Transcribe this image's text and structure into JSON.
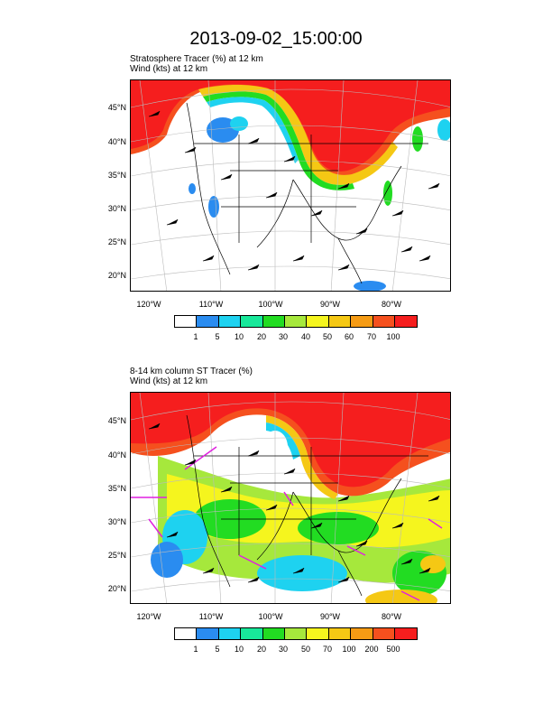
{
  "title": "2013-09-02_15:00:00",
  "colors": {
    "white": "#ffffff",
    "blue": "#2a8cf0",
    "cyan": "#1ed2f0",
    "teal": "#18e89a",
    "green": "#22dc22",
    "lime": "#a6e83c",
    "yellow": "#f5f51e",
    "gold": "#f5c814",
    "orange": "#f59b14",
    "redorange": "#f5501e",
    "red": "#f51e1e"
  },
  "panel_top": {
    "line1": "Stratosphere Tracer   (%)     at   12 km",
    "line2": "Wind   (kts)     at   12 km",
    "lat_labels": [
      "45°N",
      "40°N",
      "35°N",
      "30°N",
      "25°N",
      "20°N"
    ],
    "lon_labels": [
      "120°W",
      "110°W",
      "100°W",
      "90°W",
      "80°W"
    ],
    "colorbar_labels": [
      "1",
      "5",
      "10",
      "20",
      "30",
      "40",
      "50",
      "60",
      "70",
      "100"
    ]
  },
  "panel_bottom": {
    "line1": "8-14 km column ST Tracer   (%)",
    "line2": "Wind   (kts)     at   12 km",
    "lat_labels": [
      "45°N",
      "40°N",
      "35°N",
      "30°N",
      "25°N",
      "20°N"
    ],
    "lon_labels": [
      "120°W",
      "110°W",
      "100°W",
      "90°W",
      "80°W"
    ],
    "colorbar_labels": [
      "1",
      "5",
      "10",
      "20",
      "30",
      "50",
      "70",
      "100",
      "200",
      "500"
    ]
  }
}
